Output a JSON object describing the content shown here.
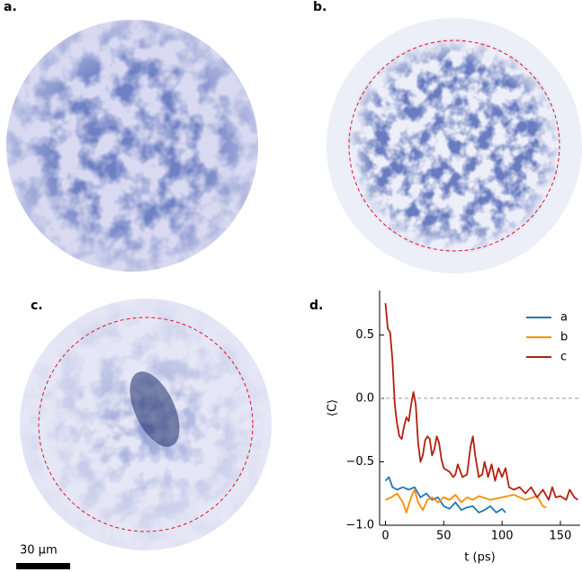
{
  "panel_labels": [
    "a.",
    "b.",
    "c."
  ],
  "scale_bar": "30 μm",
  "chart_data": {
    "type": "line",
    "panel_label": "d.",
    "x_label": "t (ps)",
    "y_label": "⟨C⟩",
    "xlim": [
      -5,
      167
    ],
    "ylim": [
      -1.0,
      0.85
    ],
    "xticks": [
      0,
      50,
      100,
      150
    ],
    "yticks": [
      {
        "value": -1.0,
        "label": "−1.0"
      },
      {
        "value": -0.5,
        "label": "−0.5"
      },
      {
        "value": 0,
        "label": "0.0"
      },
      0.5
    ],
    "hline": 0,
    "hline_color": "#999999",
    "legend": "upper right",
    "series": [
      {
        "name": "a",
        "color": "#1f77b4",
        "x": [
          0,
          3,
          6,
          10,
          15,
          20,
          25,
          30,
          35,
          40,
          45,
          50,
          55,
          60,
          65,
          70,
          75,
          80,
          85,
          90,
          95,
          100,
          103
        ],
        "values": [
          -0.65,
          -0.62,
          -0.7,
          -0.72,
          -0.7,
          -0.72,
          -0.7,
          -0.78,
          -0.75,
          -0.8,
          -0.78,
          -0.85,
          -0.87,
          -0.82,
          -0.88,
          -0.86,
          -0.85,
          -0.9,
          -0.88,
          -0.85,
          -0.9,
          -0.87,
          -0.9
        ]
      },
      {
        "name": "b",
        "color": "#ff8c00",
        "x": [
          0,
          5,
          10,
          15,
          18,
          22,
          25,
          28,
          32,
          36,
          40,
          45,
          50,
          55,
          60,
          65,
          70,
          75,
          80,
          90,
          100,
          110,
          120,
          130,
          135,
          138
        ],
        "values": [
          -0.8,
          -0.78,
          -0.75,
          -0.82,
          -0.9,
          -0.78,
          -0.72,
          -0.82,
          -0.88,
          -0.8,
          -0.78,
          -0.82,
          -0.78,
          -0.8,
          -0.76,
          -0.82,
          -0.78,
          -0.8,
          -0.77,
          -0.8,
          -0.78,
          -0.76,
          -0.8,
          -0.77,
          -0.85,
          -0.86
        ]
      },
      {
        "name": "c",
        "color": "#b2200e",
        "x": [
          0,
          2,
          4,
          6,
          8,
          10,
          12,
          14,
          16,
          18,
          20,
          22,
          24,
          26,
          28,
          30,
          32,
          34,
          36,
          38,
          40,
          42,
          44,
          46,
          48,
          50,
          55,
          58,
          60,
          62,
          64,
          66,
          70,
          73,
          75,
          77,
          80,
          83,
          85,
          88,
          91,
          94,
          97,
          100,
          103,
          106,
          110,
          115,
          120,
          125,
          130,
          135,
          140,
          143,
          146,
          150,
          155,
          158,
          162,
          165
        ],
        "values": [
          0.75,
          0.55,
          0.52,
          0.3,
          -0.05,
          -0.2,
          -0.3,
          -0.32,
          -0.22,
          -0.15,
          -0.18,
          -0.05,
          0.05,
          -0.05,
          -0.35,
          -0.5,
          -0.45,
          -0.33,
          -0.3,
          -0.32,
          -0.45,
          -0.4,
          -0.3,
          -0.35,
          -0.48,
          -0.55,
          -0.58,
          -0.62,
          -0.6,
          -0.52,
          -0.57,
          -0.62,
          -0.6,
          -0.38,
          -0.3,
          -0.45,
          -0.62,
          -0.6,
          -0.5,
          -0.62,
          -0.52,
          -0.65,
          -0.55,
          -0.62,
          -0.55,
          -0.7,
          -0.72,
          -0.7,
          -0.75,
          -0.7,
          -0.78,
          -0.72,
          -0.8,
          -0.7,
          -0.78,
          -0.77,
          -0.8,
          -0.72,
          -0.78,
          -0.8
        ]
      }
    ]
  }
}
